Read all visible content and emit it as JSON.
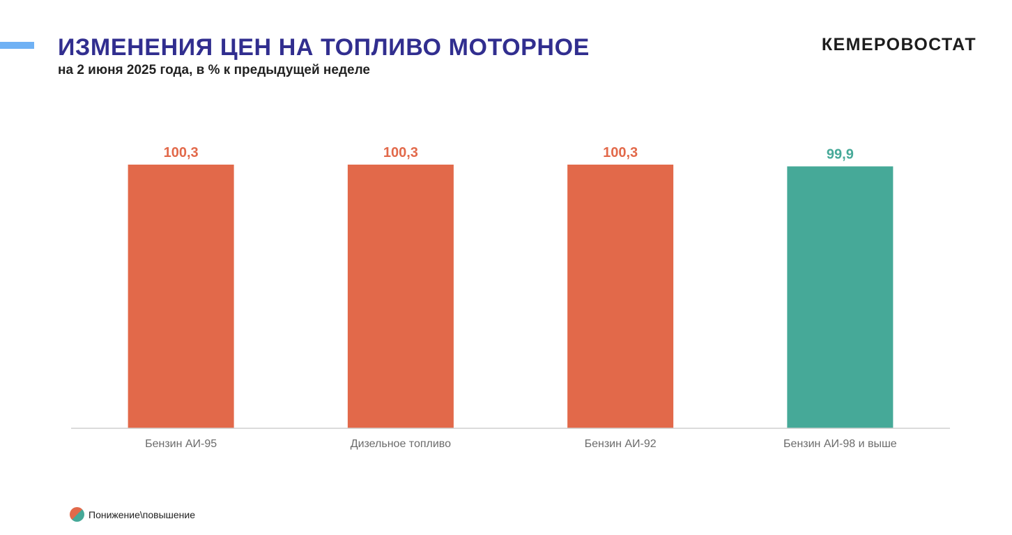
{
  "header": {
    "title": "ИЗМЕНЕНИЯ ЦЕН НА ТОПЛИВО МОТОРНОЕ",
    "subtitle": "на 2 июня 2025 года, в % к предыдущей неделе",
    "logo": "КЕМЕРОВОСТАТ",
    "accent_color": "#6fb1f4",
    "title_color": "#312e8f"
  },
  "legend": {
    "label": "Понижение\\повышение",
    "colors": [
      "#e2694a",
      "#46a998"
    ]
  },
  "chart_data": {
    "type": "bar",
    "categories": [
      "Бензин АИ-95",
      "Дизельное топливо",
      "Бензин АИ-92",
      "Бензин АИ-98 и выше"
    ],
    "values": [
      100.3,
      100.3,
      100.3,
      99.9
    ],
    "value_labels": [
      "100,3",
      "100,3",
      "100,3",
      "99,9"
    ],
    "title": "",
    "xlabel": "",
    "ylabel": "",
    "ylim": [
      0,
      100.3
    ],
    "grid": false,
    "legend_position": "bottom-left",
    "increase_color": "#e2694a",
    "decrease_color": "#46a998"
  }
}
